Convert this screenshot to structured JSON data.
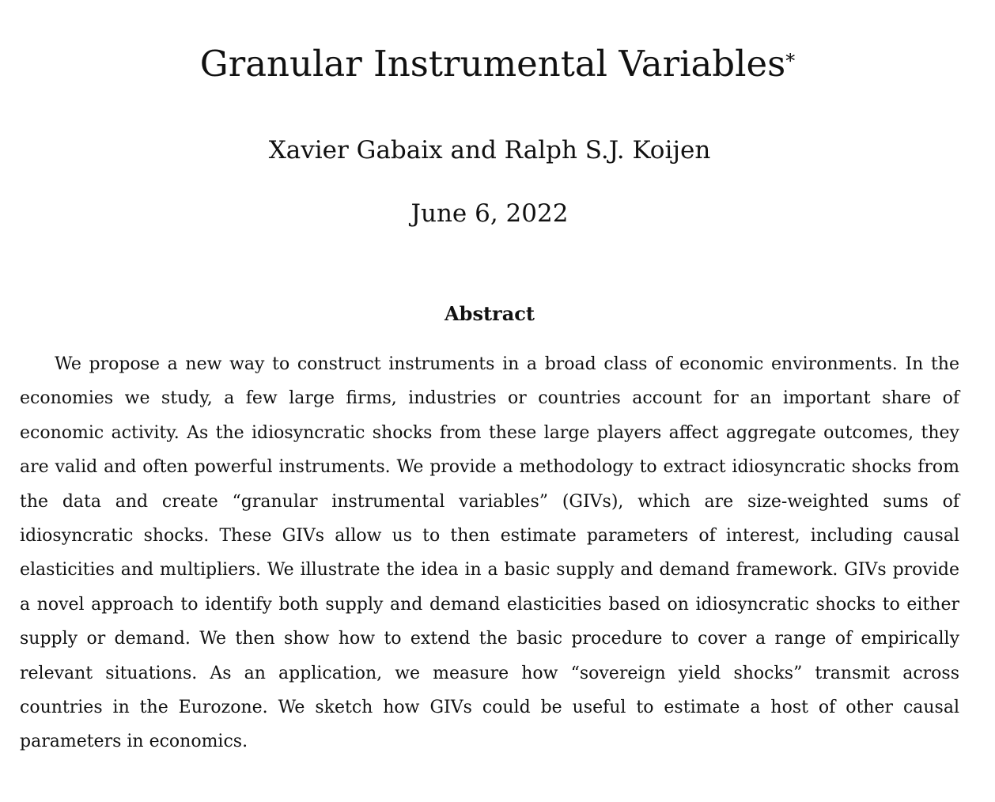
{
  "paper": {
    "title": "Granular Instrumental Variables",
    "title_footnote_mark": "*",
    "authors": "Xavier Gabaix and Ralph S.J. Koijen",
    "date": "June 6, 2022"
  },
  "abstract": {
    "heading": "Abstract",
    "text": "We propose a new way to construct instruments in a broad class of economic environments. In the economies we study, a few large firms, industries or countries account for an important share of economic activity. As the idiosyncratic shocks from these large players affect aggregate outcomes, they are valid and often powerful instruments. We provide a methodology to extract idiosyncratic shocks from the data and create “granular instrumental variables” (GIVs), which are size-weighted sums of idiosyncratic shocks. These GIVs allow us to then estimate parameters of interest, including causal elasticities and multipliers. We illustrate the idea in a basic supply and demand framework. GIVs provide a novel approach to identify both supply and demand elasticities based on idiosyncratic shocks to either supply or demand. We then show how to extend the basic procedure to cover a range of empirically relevant situations. As an application, we measure how “sovereign yield shocks” transmit across countries in the Eurozone. We sketch how GIVs could be useful to estimate a host of other causal parameters in economics."
  }
}
